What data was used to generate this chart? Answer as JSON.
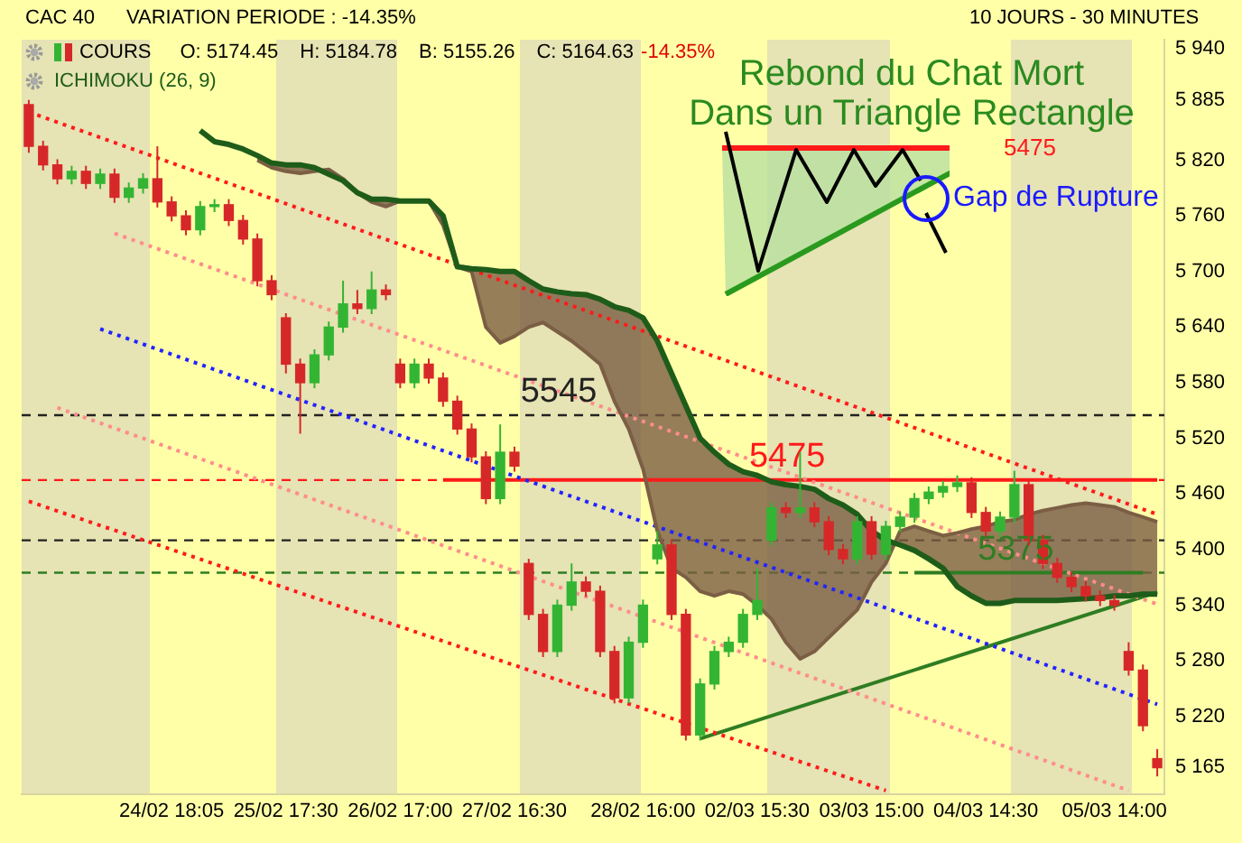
{
  "chart_data": {
    "type": "candlestick",
    "title": "Rebond du Chat Mort",
    "subtitle": "Dans un Triangle Rectangle",
    "annotations": [
      "CAC 40",
      "VARIATION PERIODE : -14.35%",
      "10 JOURS - 30 MINUTES",
      "O: 5174.45",
      "H: 5184.78",
      "B: 5155.26",
      "C: 5164.63",
      "-14.35%",
      "5475",
      "Gap de Rupture"
    ],
    "legend": "top left",
    "categories": [
      null,
      null,
      null,
      null,
      null,
      null,
      null,
      null,
      null,
      null,
      "24/02 18:05",
      null,
      null,
      null,
      null,
      null,
      null,
      null,
      "25/02 17:30",
      null,
      null,
      null,
      null,
      null,
      null,
      null,
      "26/02 17:00",
      null,
      null,
      null,
      null,
      null,
      null,
      null,
      "27/02 16:30",
      null,
      null,
      null,
      null,
      null,
      null,
      null,
      null,
      "28/02 16:00",
      null,
      null,
      null,
      null,
      null,
      null,
      null,
      "02/03 15:30",
      null,
      null,
      null,
      null,
      null,
      null,
      null,
      "03/03 15:00",
      null,
      null,
      null,
      null,
      null,
      null,
      null,
      "04/03 14:30",
      null,
      null,
      null,
      null,
      null,
      null,
      null,
      null,
      "05/03 14:00",
      null,
      null,
      null
    ],
    "ylim": [
      5136,
      5950
    ],
    "yticks": [
      {
        "value": 5940,
        "label": "5 940"
      },
      {
        "value": 5885,
        "label": "5 885"
      },
      {
        "value": 5820,
        "label": "5 820"
      },
      {
        "value": 5760,
        "label": "5 760"
      },
      {
        "value": 5700,
        "label": "5 700"
      },
      {
        "value": 5640,
        "label": "5 640"
      },
      {
        "value": 5580,
        "label": "5 580"
      },
      {
        "value": 5520,
        "label": "5 520"
      },
      {
        "value": 5460,
        "label": "5 460"
      },
      {
        "value": 5400,
        "label": "5 400"
      },
      {
        "value": 5340,
        "label": "5 340"
      },
      {
        "value": 5280,
        "label": "5 280"
      },
      {
        "value": 5220,
        "label": "5 220"
      },
      {
        "value": 5165,
        "label": "5 165"
      }
    ],
    "ref_lines": [
      {
        "axis": "y",
        "value": 5545,
        "label": "5545",
        "color": "#222222",
        "line_style": "dashed"
      },
      {
        "axis": "y",
        "value": 5475,
        "label": "5475",
        "color": "#ff1a1a",
        "line_style": "dashed"
      },
      {
        "axis": "y",
        "value": 5410,
        "color": "#222222",
        "line_style": "dashed"
      },
      {
        "axis": "y",
        "value": 5375,
        "label": "5375",
        "color": "#2f7d22",
        "line_style": "dashed"
      }
    ],
    "series": [
      {
        "name": "COURS",
        "ohlc": [
          [
            5880,
            5885,
            5828,
            5835
          ],
          [
            5835,
            5841,
            5809,
            5815
          ],
          [
            5815,
            5821,
            5794,
            5800
          ],
          [
            5800,
            5814,
            5794,
            5808
          ],
          [
            5808,
            5814,
            5789,
            5795
          ],
          [
            5795,
            5811,
            5789,
            5805
          ],
          [
            5805,
            5811,
            5774,
            5780
          ],
          [
            5780,
            5796,
            5774,
            5790
          ],
          [
            5790,
            5806,
            5784,
            5800
          ],
          [
            5800,
            5835,
            5769,
            5775
          ],
          [
            5775,
            5781,
            5754,
            5760
          ],
          [
            5760,
            5766,
            5739,
            5745
          ],
          [
            5745,
            5776,
            5739,
            5770
          ],
          [
            5770,
            5778,
            5764,
            5772
          ],
          [
            5772,
            5778,
            5749,
            5755
          ],
          [
            5755,
            5761,
            5729,
            5735
          ],
          [
            5735,
            5741,
            5684,
            5690
          ],
          [
            5690,
            5696,
            5669,
            5675
          ],
          [
            5650,
            5655,
            5590,
            5600
          ],
          [
            5600,
            5606,
            5525,
            5580
          ],
          [
            5580,
            5616,
            5574,
            5610
          ],
          [
            5610,
            5646,
            5604,
            5640
          ],
          [
            5640,
            5690,
            5634,
            5665
          ],
          [
            5665,
            5680,
            5654,
            5660
          ],
          [
            5660,
            5700,
            5654,
            5680
          ],
          [
            5680,
            5686,
            5669,
            5675
          ],
          [
            5600,
            5606,
            5574,
            5580
          ],
          [
            5580,
            5606,
            5574,
            5600
          ],
          [
            5600,
            5606,
            5579,
            5585
          ],
          [
            5585,
            5591,
            5554,
            5560
          ],
          [
            5560,
            5566,
            5524,
            5530
          ],
          [
            5530,
            5536,
            5494,
            5500
          ],
          [
            5500,
            5506,
            5449,
            5455
          ],
          [
            5455,
            5535,
            5449,
            5505
          ],
          [
            5505,
            5511,
            5484,
            5490
          ],
          [
            5385,
            5390,
            5324,
            5330
          ],
          [
            5330,
            5336,
            5284,
            5290
          ],
          [
            5290,
            5346,
            5284,
            5340
          ],
          [
            5340,
            5385,
            5334,
            5365
          ],
          [
            5365,
            5371,
            5349,
            5355
          ],
          [
            5355,
            5361,
            5284,
            5290
          ],
          [
            5290,
            5296,
            5234,
            5240
          ],
          [
            5240,
            5306,
            5234,
            5300
          ],
          [
            5300,
            5346,
            5294,
            5340
          ],
          [
            5390,
            5420,
            5384,
            5405
          ],
          [
            5405,
            5411,
            5324,
            5330
          ],
          [
            5330,
            5336,
            5194,
            5200
          ],
          [
            5200,
            5261,
            5194,
            5255
          ],
          [
            5255,
            5296,
            5249,
            5290
          ],
          [
            5290,
            5306,
            5284,
            5300
          ],
          [
            5300,
            5336,
            5294,
            5330
          ],
          [
            5330,
            5380,
            5324,
            5345
          ],
          [
            5410,
            5451,
            5404,
            5445
          ],
          [
            5445,
            5451,
            5434,
            5440
          ],
          [
            5440,
            5505,
            5434,
            5445
          ],
          [
            5445,
            5451,
            5424,
            5430
          ],
          [
            5430,
            5436,
            5394,
            5400
          ],
          [
            5400,
            5406,
            5384,
            5390
          ],
          [
            5390,
            5436,
            5384,
            5430
          ],
          [
            5430,
            5436,
            5389,
            5395
          ],
          [
            5395,
            5431,
            5389,
            5425
          ],
          [
            5425,
            5441,
            5419,
            5435
          ],
          [
            5435,
            5461,
            5429,
            5455
          ],
          [
            5455,
            5468,
            5449,
            5462
          ],
          [
            5462,
            5474,
            5456,
            5468
          ],
          [
            5468,
            5480,
            5462,
            5472
          ],
          [
            5472,
            5478,
            5434,
            5440
          ],
          [
            5440,
            5446,
            5414,
            5420
          ],
          [
            5420,
            5441,
            5414,
            5435
          ],
          [
            5435,
            5485,
            5429,
            5470
          ],
          [
            5470,
            5476,
            5404,
            5410
          ],
          [
            5410,
            5416,
            5379,
            5385
          ],
          [
            5385,
            5391,
            5364,
            5370
          ],
          [
            5370,
            5376,
            5354,
            5360
          ],
          [
            5360,
            5366,
            5344,
            5350
          ],
          [
            5350,
            5356,
            5339,
            5345
          ],
          [
            5345,
            5351,
            5334,
            5340
          ],
          [
            5290,
            5300,
            5264,
            5270
          ],
          [
            5270,
            5276,
            5204,
            5210
          ],
          [
            5174.45,
            5184.78,
            5155.26,
            5164.63
          ]
        ]
      },
      {
        "name": "ICHIMOKU (26, 9)",
        "type": "line",
        "color": "#1e5c1a",
        "values": [
          null,
          null,
          null,
          null,
          null,
          null,
          null,
          null,
          null,
          null,
          null,
          null,
          5852,
          5840,
          5837,
          5832,
          5825,
          5817,
          5815,
          5815,
          5812,
          5805,
          5798,
          5785,
          5778,
          5778,
          5776,
          5776,
          5776,
          5760,
          5705,
          5703,
          5702,
          5700,
          5700,
          5690,
          5681,
          5678,
          5676,
          5675,
          5670,
          5662,
          5658,
          5650,
          5625,
          5590,
          5555,
          5520,
          5505,
          5492,
          5484,
          5480,
          5473,
          5470,
          5468,
          5465,
          5455,
          5448,
          5438,
          5420,
          5410,
          5405,
          5399,
          5390,
          5380,
          5360,
          5350,
          5342,
          5342,
          5345,
          5345,
          5345,
          5345,
          5346,
          5347,
          5348,
          5350,
          5350,
          5352,
          5352
        ]
      },
      {
        "type": "line",
        "color": "#7b5e44",
        "values": [
          null,
          null,
          null,
          null,
          null,
          null,
          null,
          null,
          null,
          null,
          null,
          null,
          null,
          null,
          null,
          null,
          5820,
          5812,
          5808,
          5806,
          5808,
          5810,
          5800,
          5785,
          5775,
          5770,
          5776,
          5776,
          5776,
          5750,
          5705,
          5700,
          5640,
          5623,
          5630,
          5640,
          5645,
          5635,
          5625,
          5613,
          5600,
          5560,
          5530,
          5487,
          5420,
          5380,
          5370,
          5355,
          5350,
          5355,
          5352,
          5340,
          5325,
          5300,
          5282,
          5290,
          5305,
          5320,
          5335,
          5365,
          5385,
          5420,
          5425,
          5420,
          5415,
          5418,
          5422,
          5425,
          5430,
          5432,
          5438,
          5442,
          5445,
          5448,
          5450,
          5448,
          5446,
          5440,
          5435,
          5430
        ],
        "lower": [
          null,
          null,
          null,
          null,
          null,
          null,
          null,
          null,
          null,
          null,
          null,
          null,
          null,
          null,
          null,
          null,
          5820,
          5812,
          5808,
          5806,
          5808,
          5810,
          5800,
          5785,
          5775,
          5770,
          5776,
          5776,
          5776,
          5750,
          5705,
          5700,
          5640,
          5623,
          5630,
          5640,
          5645,
          5635,
          5625,
          5613,
          5600,
          5560,
          5530,
          5487,
          5420,
          5380,
          5370,
          5355,
          5350,
          5355,
          5352,
          5340,
          5325,
          5300,
          5282,
          5290,
          5305,
          5320,
          5335,
          5365,
          5385,
          5420,
          5425,
          5420,
          5415,
          5418,
          5422,
          5425,
          5430,
          5432,
          5438,
          5442,
          5445,
          5448,
          5450,
          5448,
          5446,
          5440,
          5435,
          5430
        ],
        "upper": [
          null,
          null,
          null,
          null,
          null,
          null,
          null,
          null,
          null,
          null,
          null,
          null,
          null,
          null,
          null,
          null,
          5825,
          5817,
          5815,
          5815,
          5812,
          5805,
          5798,
          5785,
          5778,
          5778,
          5776,
          5776,
          5776,
          5760,
          5705,
          5703,
          5702,
          5700,
          5700,
          5690,
          5681,
          5678,
          5676,
          5675,
          5670,
          5662,
          5658,
          5650,
          5625,
          5590,
          5555,
          5520,
          5505,
          5492,
          5484,
          5480,
          5473,
          5470,
          5468,
          5465,
          5455,
          5448,
          5438,
          5420,
          5410,
          5405,
          5399,
          5390,
          5380,
          5360,
          5350,
          5342,
          5342,
          5345,
          5345,
          5345,
          5345,
          5346,
          5347,
          5348,
          5350,
          5350,
          5352,
          5352
        ]
      },
      {
        "type": "line",
        "color": "#ff1a1a",
        "line_style": "dotted",
        "values": [
          5872,
          null,
          null,
          null,
          null,
          null,
          null,
          null,
          null,
          null,
          null,
          null,
          null,
          null,
          null,
          null,
          null,
          null,
          null,
          null,
          null,
          null,
          null,
          null,
          null,
          null,
          null,
          null,
          null,
          null,
          null,
          null,
          null,
          null,
          null,
          null,
          null,
          null,
          null,
          null,
          null,
          null,
          null,
          null,
          null,
          null,
          null,
          null,
          null,
          null,
          null,
          null,
          null,
          null,
          null,
          null,
          null,
          null,
          null,
          null,
          null,
          null,
          null,
          null,
          null,
          null,
          null,
          null,
          null,
          null,
          null,
          null,
          null,
          null,
          null,
          null,
          null,
          null,
          null,
          5438
        ]
      },
      {
        "type": "line",
        "color": "#ff1a1a",
        "line_style": "dotted",
        "values": [
          5452,
          null,
          null,
          null,
          null,
          null,
          null,
          null,
          null,
          null,
          null,
          null,
          null,
          null,
          null,
          null,
          null,
          null,
          null,
          null,
          null,
          null,
          null,
          null,
          null,
          null,
          null,
          null,
          null,
          null,
          null,
          null,
          null,
          null,
          null,
          null,
          null,
          null,
          null,
          null,
          null,
          null,
          null,
          null,
          null,
          null,
          null,
          null,
          null,
          null,
          null,
          null,
          null,
          null,
          null,
          null,
          null,
          null,
          null,
          null,
          5140,
          null,
          null,
          null,
          null,
          null,
          null,
          null,
          null,
          null,
          null,
          null,
          null,
          null,
          null,
          null,
          null,
          null,
          null,
          null
        ]
      },
      {
        "type": "line",
        "color": "#ff8c8c",
        "line_style": "dotted",
        "values": [
          null,
          null,
          null,
          null,
          null,
          null,
          5741,
          null,
          null,
          null,
          null,
          null,
          null,
          null,
          null,
          null,
          null,
          null,
          null,
          null,
          null,
          null,
          null,
          null,
          null,
          null,
          null,
          null,
          null,
          null,
          null,
          null,
          null,
          null,
          null,
          null,
          null,
          null,
          null,
          null,
          null,
          null,
          null,
          null,
          null,
          null,
          null,
          null,
          null,
          null,
          null,
          null,
          null,
          null,
          null,
          null,
          null,
          null,
          null,
          null,
          null,
          null,
          null,
          null,
          null,
          null,
          null,
          null,
          null,
          null,
          null,
          null,
          null,
          null,
          null,
          null,
          null,
          null,
          null,
          5341
        ]
      },
      {
        "type": "line",
        "color": "#ff8c8c",
        "line_style": "dotted",
        "values": [
          null,
          null,
          5553,
          null,
          null,
          null,
          null,
          null,
          null,
          null,
          null,
          null,
          null,
          null,
          null,
          null,
          null,
          null,
          null,
          null,
          null,
          null,
          null,
          null,
          null,
          null,
          null,
          null,
          null,
          null,
          null,
          null,
          null,
          null,
          null,
          null,
          null,
          null,
          null,
          null,
          null,
          null,
          null,
          null,
          null,
          null,
          null,
          null,
          null,
          null,
          null,
          null,
          null,
          null,
          null,
          null,
          null,
          null,
          null,
          null,
          null,
          null,
          null,
          null,
          null,
          null,
          null,
          null,
          null,
          null,
          null,
          null,
          null,
          null,
          null,
          null,
          null,
          5140,
          null,
          null
        ]
      },
      {
        "type": "line",
        "color": "#2323ff",
        "line_style": "dotted",
        "values": [
          null,
          null,
          null,
          null,
          null,
          5638,
          null,
          null,
          null,
          null,
          null,
          null,
          null,
          null,
          null,
          null,
          null,
          null,
          null,
          null,
          null,
          null,
          null,
          null,
          null,
          null,
          null,
          null,
          null,
          null,
          null,
          null,
          null,
          null,
          null,
          null,
          null,
          null,
          null,
          null,
          null,
          null,
          null,
          null,
          null,
          null,
          null,
          null,
          null,
          null,
          null,
          null,
          null,
          null,
          null,
          null,
          null,
          null,
          null,
          null,
          null,
          null,
          null,
          null,
          null,
          null,
          null,
          null,
          null,
          null,
          null,
          null,
          null,
          null,
          null,
          null,
          null,
          null,
          null,
          5233
        ]
      },
      {
        "type": "line",
        "color": "#2f7d22",
        "values": [
          null,
          null,
          null,
          null,
          null,
          null,
          null,
          null,
          null,
          null,
          null,
          null,
          null,
          null,
          null,
          null,
          null,
          null,
          null,
          null,
          null,
          null,
          null,
          null,
          null,
          null,
          null,
          null,
          null,
          null,
          null,
          null,
          null,
          null,
          null,
          null,
          null,
          null,
          null,
          null,
          null,
          null,
          null,
          null,
          null,
          null,
          null,
          5196,
          null,
          null,
          null,
          null,
          null,
          null,
          null,
          null,
          null,
          null,
          null,
          null,
          null,
          null,
          null,
          null,
          null,
          null,
          null,
          null,
          null,
          null,
          null,
          null,
          null,
          null,
          null,
          null,
          null,
          null,
          null,
          5354
        ]
      },
      {
        "type": "line",
        "color": "#2f7d22",
        "values": [
          null,
          null,
          null,
          null,
          null,
          null,
          null,
          null,
          null,
          null,
          null,
          null,
          null,
          null,
          null,
          null,
          null,
          null,
          null,
          null,
          null,
          null,
          null,
          null,
          null,
          null,
          null,
          null,
          null,
          null,
          null,
          null,
          null,
          null,
          null,
          null,
          null,
          null,
          null,
          null,
          null,
          null,
          null,
          null,
          null,
          null,
          null,
          null,
          null,
          null,
          null,
          null,
          null,
          null,
          null,
          null,
          null,
          null,
          null,
          null,
          null,
          null,
          5375,
          null,
          null,
          null,
          null,
          null,
          null,
          null,
          null,
          null,
          null,
          null,
          null,
          null,
          null,
          null,
          5375,
          null
        ]
      },
      {
        "type": "line",
        "color": "#ff1a1a",
        "values": [
          null,
          null,
          null,
          null,
          null,
          null,
          null,
          null,
          null,
          null,
          null,
          null,
          null,
          null,
          null,
          null,
          null,
          null,
          null,
          null,
          null,
          null,
          null,
          null,
          null,
          null,
          null,
          null,
          null,
          5475,
          null,
          null,
          null,
          null,
          null,
          null,
          null,
          null,
          null,
          null,
          null,
          null,
          null,
          null,
          null,
          null,
          null,
          null,
          null,
          null,
          null,
          null,
          null,
          null,
          null,
          null,
          null,
          null,
          null,
          null,
          null,
          null,
          null,
          null,
          null,
          null,
          null,
          null,
          null,
          null,
          null,
          null,
          null,
          null,
          null,
          null,
          null,
          null,
          null,
          5475
        ]
      }
    ]
  }
}
